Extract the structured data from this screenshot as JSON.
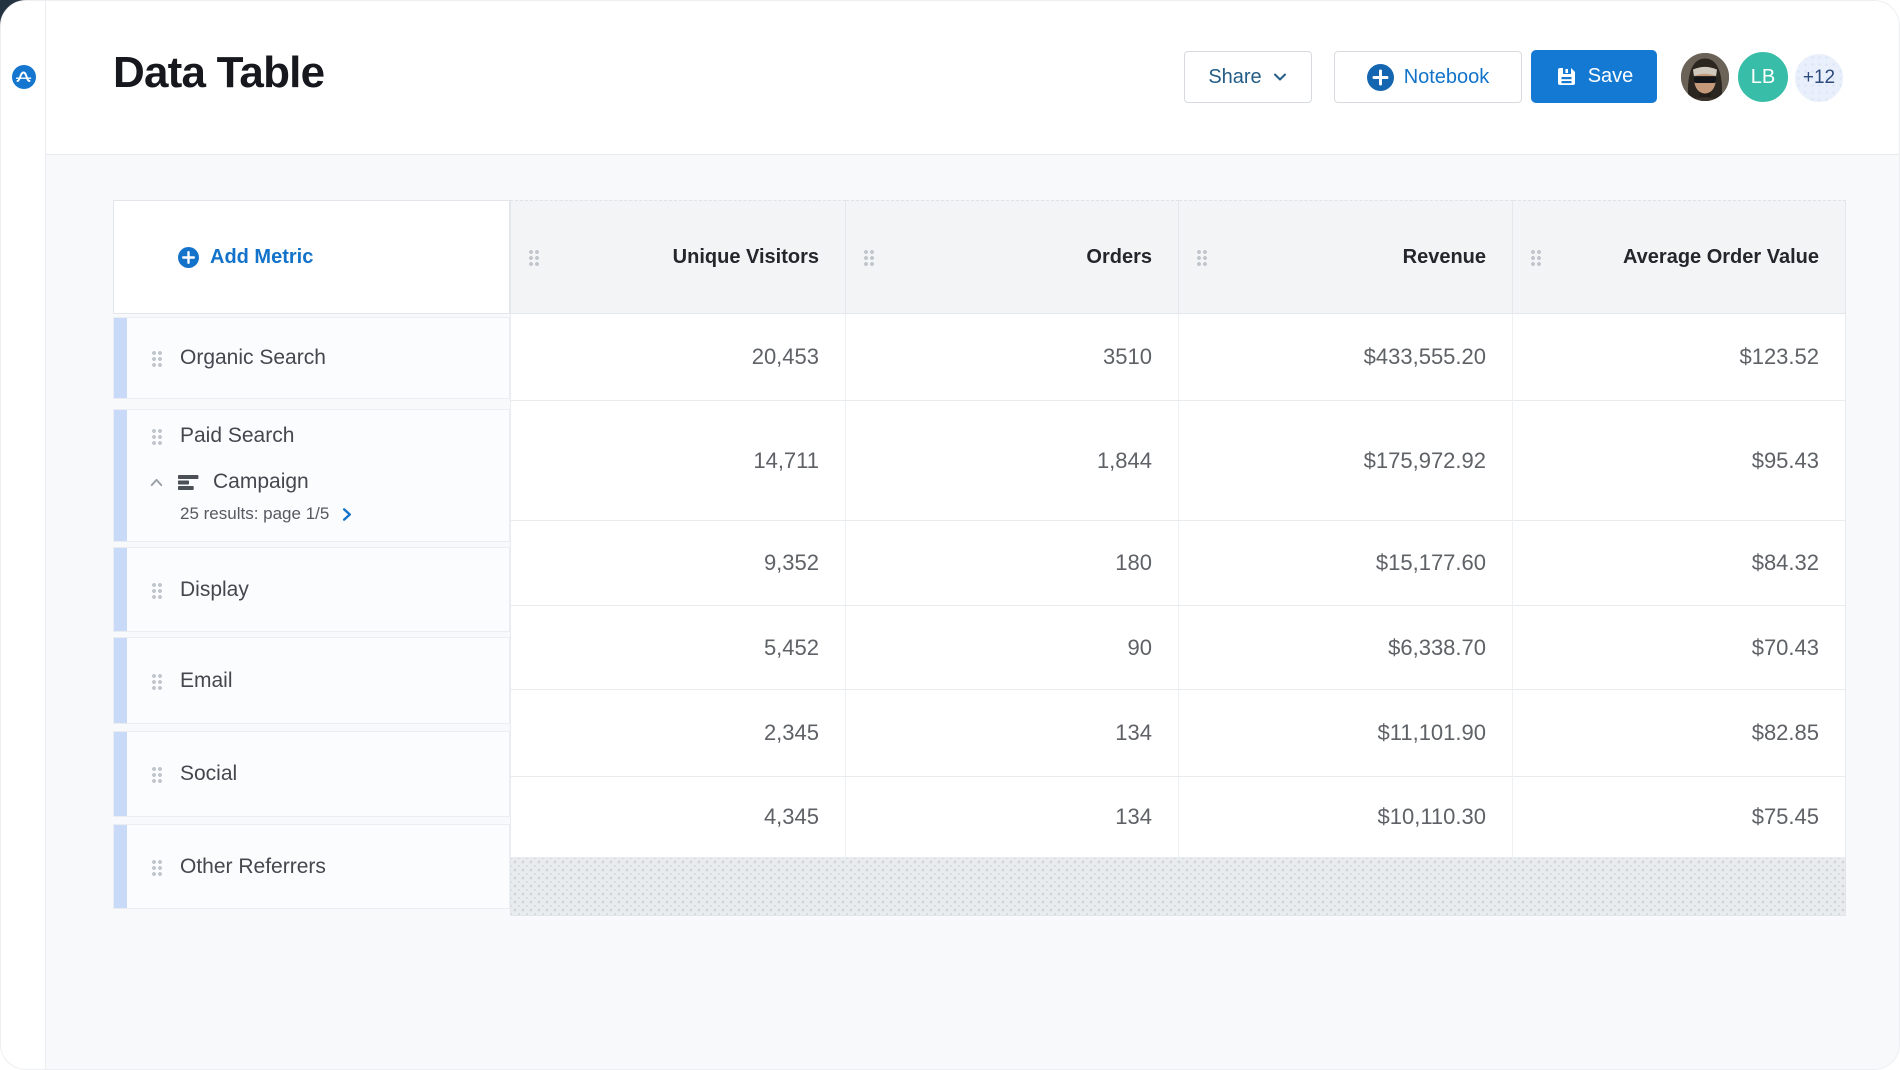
{
  "header": {
    "title": "Data Table",
    "share_label": "Share",
    "notebook_label": "Notebook",
    "save_label": "Save",
    "avatar_initials": "LB",
    "avatar_overflow_count": "+12"
  },
  "table": {
    "add_metric_label": "Add Metric",
    "columns": [
      "Unique Visitors",
      "Orders",
      "Revenue",
      "Average Order Value"
    ],
    "row_labels": [
      {
        "label": "Organic Search"
      },
      {
        "label": "Paid Search",
        "breakdown_name": "Campaign",
        "breakdown_results": "25 results: page 1/5"
      },
      {
        "label": "Display"
      },
      {
        "label": "Email"
      },
      {
        "label": "Social"
      },
      {
        "label": "Other Referrers"
      }
    ],
    "rows": [
      [
        "20,453",
        "3510",
        "$433,555.20",
        "$123.52"
      ],
      [
        "14,711",
        "1,844",
        "$175,972.92",
        "$95.43"
      ],
      [
        "9,352",
        "180",
        "$15,177.60",
        "$84.32"
      ],
      [
        "5,452",
        "90",
        "$6,338.70",
        "$70.43"
      ],
      [
        "2,345",
        "134",
        "$11,101.90",
        "$82.85"
      ],
      [
        "4,345",
        "134",
        "$10,110.30",
        "$75.45"
      ]
    ]
  },
  "colors": {
    "brand_blue": "#1373ca",
    "save_blue": "#1479d3",
    "share_text": "#235c86",
    "teal_avatar": "#38bda9",
    "accent_bar": "#c9d9f8",
    "header_cell_bg": "#f2f4f6",
    "footer_strip_bg": "#e9eced",
    "content_bg": "#f8f9fa"
  }
}
